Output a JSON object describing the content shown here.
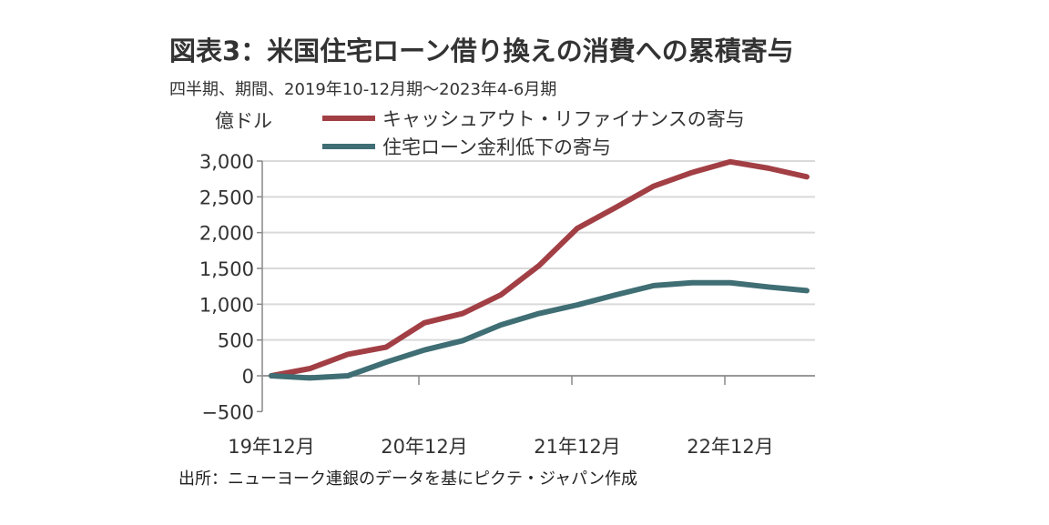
{
  "chart_data": {
    "type": "line",
    "title": "図表3：米国住宅ローン借り換えの消費への累積寄与",
    "subtitle": "四半期、期間、2019年10-12月期～2023年4-6月期",
    "ylabel": "億ドル",
    "ylim": [
      -500,
      3000
    ],
    "yticks": [
      "3,000",
      "2,500",
      "2,000",
      "1,500",
      "1,000",
      "500",
      "0",
      "−500"
    ],
    "ytick_values": [
      3000,
      2500,
      2000,
      1500,
      1000,
      500,
      0,
      -500
    ],
    "x": [
      "2019Q4",
      "2020Q1",
      "2020Q2",
      "2020Q3",
      "2020Q4",
      "2021Q1",
      "2021Q2",
      "2021Q3",
      "2021Q4",
      "2022Q1",
      "2022Q2",
      "2022Q3",
      "2022Q4",
      "2023Q1",
      "2023Q2"
    ],
    "xtick_labels": [
      "19年12月",
      "20年12月",
      "21年12月",
      "22年12月"
    ],
    "xtick_index": [
      0,
      4,
      8,
      12
    ],
    "grid": true,
    "legend_position": "top",
    "series": [
      {
        "name": "キャッシュアウト・リファイナンスの寄与",
        "color": "#a23f45",
        "values": [
          0,
          100,
          300,
          400,
          740,
          870,
          1130,
          1540,
          2060,
          2350,
          2650,
          2840,
          2990,
          2900,
          2780
        ]
      },
      {
        "name": "住宅ローン金利低下の寄与",
        "color": "#3f6e74",
        "values": [
          0,
          -30,
          0,
          190,
          360,
          490,
          710,
          870,
          990,
          1130,
          1260,
          1300,
          1300,
          1240,
          1190
        ]
      }
    ],
    "source": "出所：ニューヨーク連銀のデータを基にピクテ・ジャパン作成"
  }
}
